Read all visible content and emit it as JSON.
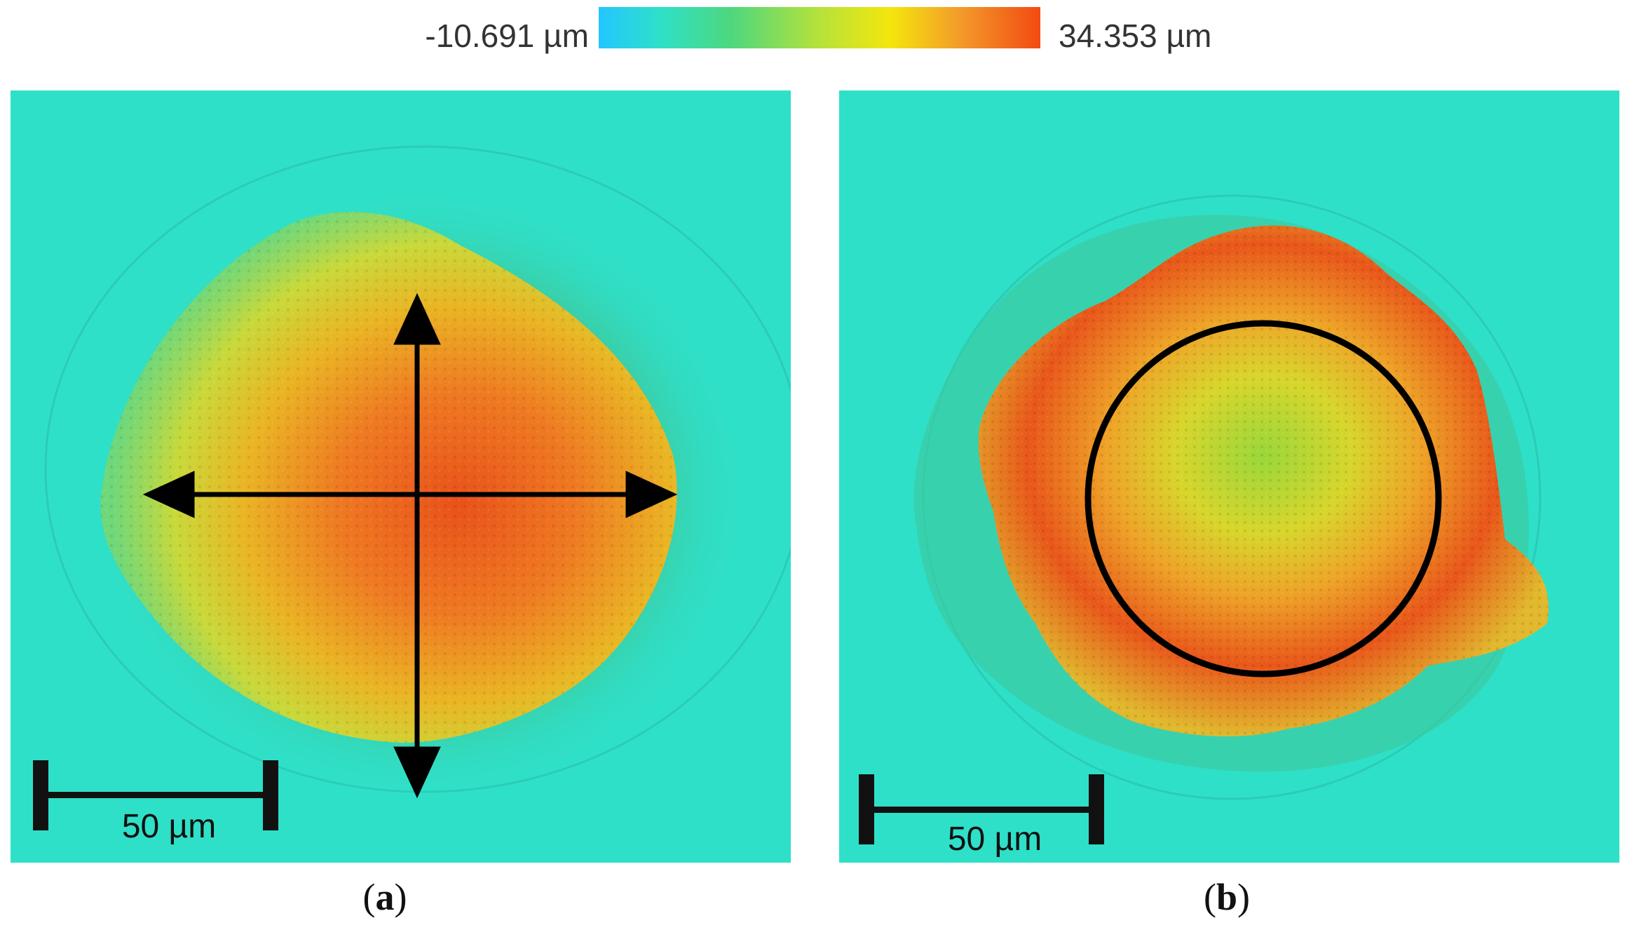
{
  "colorbar": {
    "min_label": "-10.691 µm",
    "max_label": "34.353 µm",
    "colors": [
      "#23c6ff",
      "#2fe0c8",
      "#4ed77e",
      "#b6e23a",
      "#f4e60d",
      "#f39a2a",
      "#f24a12"
    ]
  },
  "panels": [
    {
      "id": "a",
      "label_open": "(",
      "label_letter": "a",
      "label_close": ")",
      "scale_bar_text": "50 µm",
      "annotation": "crossed double-headed arrows"
    },
    {
      "id": "b",
      "label_open": "(",
      "label_letter": "b",
      "label_close": ")",
      "scale_bar_text": "50 µm",
      "annotation": "circle outline"
    }
  ],
  "colors": {
    "background_surface": "#2fe0c8",
    "peak": "#f24a12",
    "annotation": "#000000"
  }
}
